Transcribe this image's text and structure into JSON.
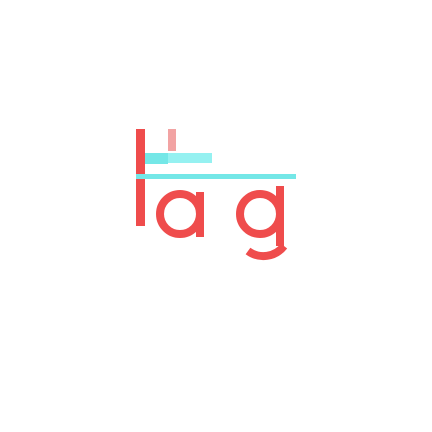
{
  "logo": {
    "wordmark": "lag",
    "colors": {
      "primary": "#ef4c4c",
      "accent": "#74e7e7",
      "accent_light": "#8ff0f0",
      "pink": "#f2a3a3",
      "background": "#ffffff"
    }
  }
}
